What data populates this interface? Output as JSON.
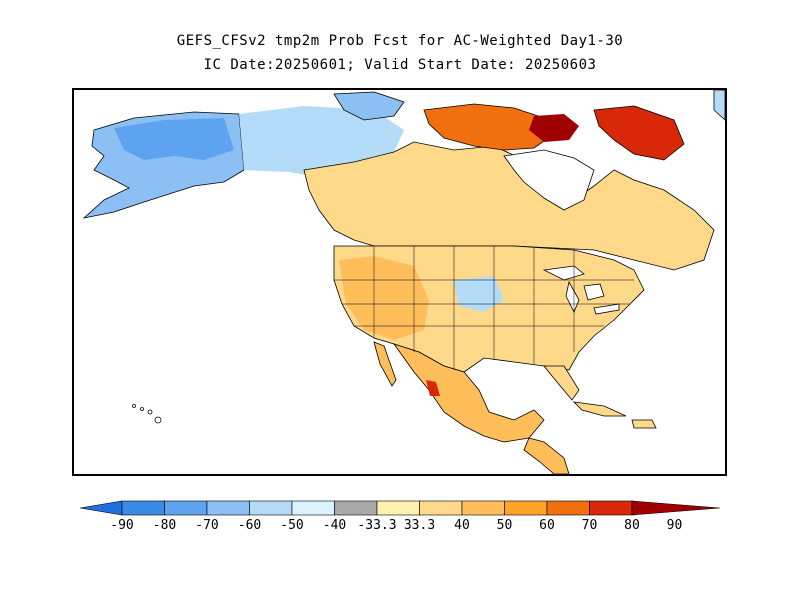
{
  "header": {
    "title_line1": "GEFS_CFSv2 tmp2m Prob Fcst for AC-Weighted Day1-30",
    "title_line2": "IC Date:20250601; Valid Start Date: 20250603"
  },
  "colorbar": {
    "labels": [
      "-90",
      "-80",
      "-70",
      "-60",
      "-50",
      "-40",
      "-33.3",
      "33.3",
      "40",
      "50",
      "60",
      "70",
      "80",
      "90"
    ],
    "colors": [
      "#1e6fe0",
      "#3c8ae8",
      "#5ea3f0",
      "#8cc0f5",
      "#b4dcf8",
      "#dcf2fb",
      "#aaaaaa",
      "#fff0b0",
      "#ffd98a",
      "#ffbe5a",
      "#ffa228",
      "#f07010",
      "#d82808",
      "#a00000"
    ]
  },
  "map": {
    "regions": [
      {
        "name": "alaska-cold",
        "color": "#8cc0f5"
      },
      {
        "name": "yukon-cold",
        "color": "#b4dcf8"
      },
      {
        "name": "canada-warm",
        "color": "#ffd98a"
      },
      {
        "name": "arctic-hot",
        "color": "#d82808"
      },
      {
        "name": "us-warm",
        "color": "#ffd98a"
      },
      {
        "name": "mexico-warm",
        "color": "#ffbe5a"
      }
    ]
  }
}
